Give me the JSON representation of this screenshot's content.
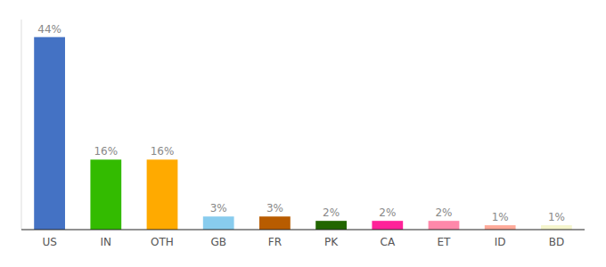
{
  "chart_data": {
    "type": "bar",
    "categories": [
      "US",
      "IN",
      "OTH",
      "GB",
      "FR",
      "PK",
      "CA",
      "ET",
      "ID",
      "BD"
    ],
    "values": [
      44,
      16,
      16,
      3,
      3,
      2,
      2,
      2,
      1,
      1
    ],
    "value_labels": [
      "44%",
      "16%",
      "16%",
      "3%",
      "3%",
      "2%",
      "2%",
      "2%",
      "1%",
      "1%"
    ],
    "colors": [
      "#4472c4",
      "#33bb00",
      "#ffaa00",
      "#88ccee",
      "#b85c00",
      "#226600",
      "#ff2299",
      "#ff88aa",
      "#ffaa99",
      "#f5f5cc"
    ],
    "ylim": [
      0,
      48
    ],
    "data_labels": true,
    "tick_labels": "x",
    "grid": false
  }
}
